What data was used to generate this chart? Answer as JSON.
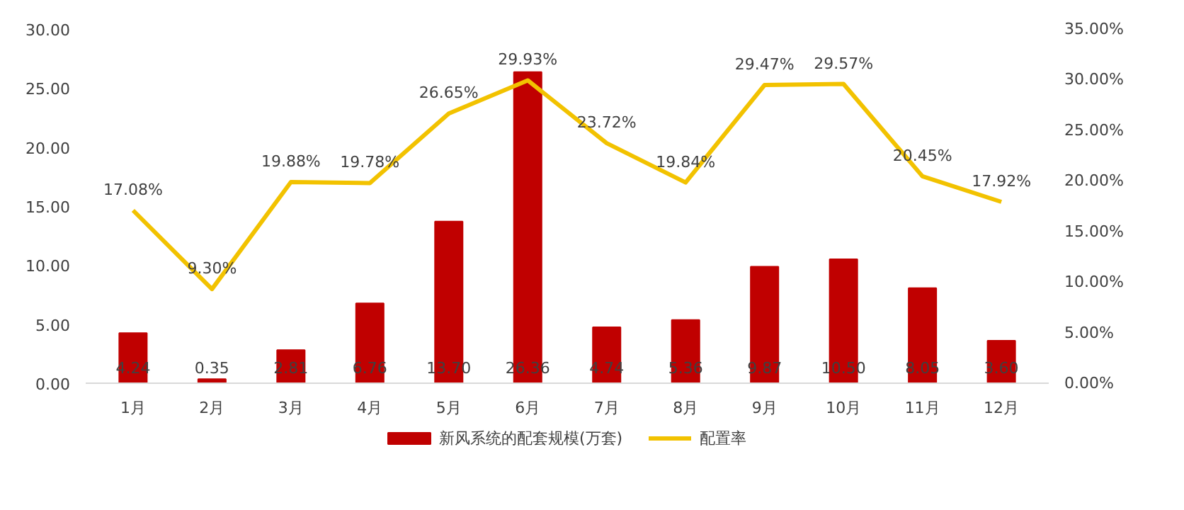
{
  "chart_data": {
    "type": "bar",
    "categories": [
      "1月",
      "2月",
      "3月",
      "4月",
      "5月",
      "6月",
      "7月",
      "8月",
      "9月",
      "10月",
      "11月",
      "12月"
    ],
    "series": [
      {
        "name": "新风系统的配套规模(万套)",
        "color": "#c00000",
        "values": [
          4.24,
          0.35,
          2.81,
          6.76,
          13.7,
          26.36,
          4.74,
          5.36,
          9.87,
          10.5,
          8.05,
          3.6
        ],
        "value_labels": [
          "4.24",
          "0.35",
          "2.81",
          "6.76",
          "13.70",
          "26.36",
          "4.74",
          "5.36",
          "9.87",
          "10.50",
          "8.05",
          "3.60"
        ]
      },
      {
        "name": "配置率",
        "type": "line",
        "axis": "y2",
        "color": "#f2c200",
        "values": [
          17.08,
          9.3,
          19.88,
          19.78,
          26.65,
          29.93,
          23.72,
          19.84,
          29.47,
          29.57,
          20.45,
          17.92
        ],
        "value_labels": [
          "17.08%",
          "9.30%",
          "19.88%",
          "19.78%",
          "26.65%",
          "29.93%",
          "23.72%",
          "19.84%",
          "29.47%",
          "29.57%",
          "20.45%",
          "17.92%"
        ]
      }
    ],
    "ylim": [
      0,
      30
    ],
    "yticks": [
      {
        "value": 0,
        "label": "0.00"
      },
      {
        "value": 5,
        "label": "5.00"
      },
      {
        "value": 10,
        "label": "10.00"
      },
      {
        "value": 15,
        "label": "15.00"
      },
      {
        "value": 20,
        "label": "20.00"
      },
      {
        "value": 25,
        "label": "25.00"
      },
      {
        "value": 30,
        "label": "30.00"
      }
    ],
    "y2lim": [
      0,
      35
    ],
    "y2ticks": [
      {
        "value": 0,
        "label": "0.00%"
      },
      {
        "value": 5,
        "label": "5.00%"
      },
      {
        "value": 10,
        "label": "10.00%"
      },
      {
        "value": 15,
        "label": "15.00%"
      },
      {
        "value": 20,
        "label": "20.00%"
      },
      {
        "value": 25,
        "label": "25.00%"
      },
      {
        "value": 30,
        "label": "30.00%"
      },
      {
        "value": 35,
        "label": "35.00%"
      }
    ],
    "grid": false,
    "legend": "bottom",
    "marker": "none",
    "line_style": "solid"
  }
}
